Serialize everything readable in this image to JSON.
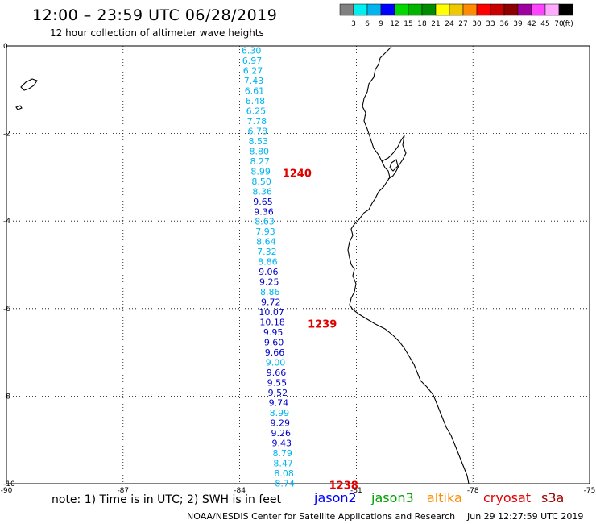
{
  "header": {
    "title": "12:00 – 23:59 UTC 06/28/2019",
    "subtitle": "12 hour collection of altimeter wave heights"
  },
  "legend": {
    "unit": "(ft)",
    "swatches": [
      {
        "label": "3",
        "color": "#808080"
      },
      {
        "label": "6",
        "color": "#00f0f0"
      },
      {
        "label": "9",
        "color": "#00b4f0"
      },
      {
        "label": "12",
        "color": "#0000ff"
      },
      {
        "label": "15",
        "color": "#00d800"
      },
      {
        "label": "18",
        "color": "#00b400"
      },
      {
        "label": "21",
        "color": "#008c00"
      },
      {
        "label": "24",
        "color": "#ffff00"
      },
      {
        "label": "27",
        "color": "#f0c800"
      },
      {
        "label": "30",
        "color": "#ff8c00"
      },
      {
        "label": "33",
        "color": "#ff0000"
      },
      {
        "label": "36",
        "color": "#c80000"
      },
      {
        "label": "39",
        "color": "#8c0000"
      },
      {
        "label": "42",
        "color": "#a000a0"
      },
      {
        "label": "45",
        "color": "#ff44ff"
      },
      {
        "label": "70",
        "color": "#ffaaff"
      },
      {
        "label": "",
        "color": "#000000"
      }
    ]
  },
  "axes": {
    "lat_ticks": [
      "0",
      "-2",
      "-4",
      "-6",
      "-8",
      "-10"
    ],
    "lon_ticks": [
      "-90",
      "-87",
      "-84",
      "-81",
      "-78",
      "-75"
    ]
  },
  "chart_data": {
    "type": "scatter",
    "x_range": [
      -90,
      -75
    ],
    "y_range": [
      -10,
      0
    ],
    "points": [
      {
        "lon": -83.7,
        "lat": -0.1,
        "value": "6.30",
        "color": "#00b4f0"
      },
      {
        "lon": -83.68,
        "lat": -0.33,
        "value": "6.97",
        "color": "#00b4f0"
      },
      {
        "lon": -83.66,
        "lat": -0.56,
        "value": "6.27",
        "color": "#00b4f0"
      },
      {
        "lon": -83.64,
        "lat": -0.79,
        "value": "7.43",
        "color": "#00b4f0"
      },
      {
        "lon": -83.62,
        "lat": -1.02,
        "value": "6.61",
        "color": "#00b4f0"
      },
      {
        "lon": -83.6,
        "lat": -1.25,
        "value": "6.48",
        "color": "#00b4f0"
      },
      {
        "lon": -83.58,
        "lat": -1.48,
        "value": "6.25",
        "color": "#00b4f0"
      },
      {
        "lon": -83.56,
        "lat": -1.71,
        "value": "7.78",
        "color": "#00b4f0"
      },
      {
        "lon": -83.54,
        "lat": -1.94,
        "value": "6.78",
        "color": "#00b4f0"
      },
      {
        "lon": -83.52,
        "lat": -2.17,
        "value": "8.53",
        "color": "#00b4f0"
      },
      {
        "lon": -83.5,
        "lat": -2.4,
        "value": "8.80",
        "color": "#00b4f0"
      },
      {
        "lon": -83.48,
        "lat": -2.63,
        "value": "8.27",
        "color": "#00b4f0"
      },
      {
        "lon": -83.46,
        "lat": -2.86,
        "value": "8.99",
        "color": "#00b4f0"
      },
      {
        "lon": -83.44,
        "lat": -3.09,
        "value": "8.50",
        "color": "#00b4f0"
      },
      {
        "lon": -83.42,
        "lat": -3.32,
        "value": "8.36",
        "color": "#00b4f0"
      },
      {
        "lon": -83.4,
        "lat": -3.55,
        "value": "9.65",
        "color": "#0000c8"
      },
      {
        "lon": -83.38,
        "lat": -3.78,
        "value": "9.36",
        "color": "#0000c8"
      },
      {
        "lon": -83.36,
        "lat": -4.01,
        "value": "8.63",
        "color": "#00b4f0"
      },
      {
        "lon": -83.34,
        "lat": -4.24,
        "value": "7.93",
        "color": "#00b4f0"
      },
      {
        "lon": -83.32,
        "lat": -4.47,
        "value": "8.64",
        "color": "#00b4f0"
      },
      {
        "lon": -83.3,
        "lat": -4.7,
        "value": "7.32",
        "color": "#00b4f0"
      },
      {
        "lon": -83.28,
        "lat": -4.93,
        "value": "8.86",
        "color": "#00b4f0"
      },
      {
        "lon": -83.26,
        "lat": -5.16,
        "value": "9.06",
        "color": "#0000c8"
      },
      {
        "lon": -83.24,
        "lat": -5.39,
        "value": "9.25",
        "color": "#0000c8"
      },
      {
        "lon": -83.22,
        "lat": -5.62,
        "value": "8.86",
        "color": "#00b4f0"
      },
      {
        "lon": -83.2,
        "lat": -5.85,
        "value": "9.72",
        "color": "#0000c8"
      },
      {
        "lon": -83.18,
        "lat": -6.08,
        "value": "10.07",
        "color": "#0000c8"
      },
      {
        "lon": -83.16,
        "lat": -6.31,
        "value": "10.18",
        "color": "#0000c8"
      },
      {
        "lon": -83.14,
        "lat": -6.54,
        "value": "9.95",
        "color": "#0000c8"
      },
      {
        "lon": -83.12,
        "lat": -6.77,
        "value": "9.60",
        "color": "#0000c8"
      },
      {
        "lon": -83.1,
        "lat": -7.0,
        "value": "9.66",
        "color": "#0000c8"
      },
      {
        "lon": -83.08,
        "lat": -7.23,
        "value": "9.00",
        "color": "#00b4f0"
      },
      {
        "lon": -83.06,
        "lat": -7.46,
        "value": "9.66",
        "color": "#0000c8"
      },
      {
        "lon": -83.04,
        "lat": -7.69,
        "value": "9.55",
        "color": "#0000c8"
      },
      {
        "lon": -83.02,
        "lat": -7.92,
        "value": "9.52",
        "color": "#0000c8"
      },
      {
        "lon": -83.0,
        "lat": -8.15,
        "value": "9.74",
        "color": "#0000c8"
      },
      {
        "lon": -82.98,
        "lat": -8.38,
        "value": "8.99",
        "color": "#00b4f0"
      },
      {
        "lon": -82.96,
        "lat": -8.61,
        "value": "9.29",
        "color": "#0000c8"
      },
      {
        "lon": -82.94,
        "lat": -8.84,
        "value": "9.26",
        "color": "#0000c8"
      },
      {
        "lon": -82.92,
        "lat": -9.07,
        "value": "9.43",
        "color": "#0000c8"
      },
      {
        "lon": -82.9,
        "lat": -9.3,
        "value": "8.79",
        "color": "#00b4f0"
      },
      {
        "lon": -82.88,
        "lat": -9.53,
        "value": "8.47",
        "color": "#00b4f0"
      },
      {
        "lon": -82.86,
        "lat": -9.76,
        "value": "8.08",
        "color": "#00b4f0"
      },
      {
        "lon": -82.84,
        "lat": -9.99,
        "value": "8.74",
        "color": "#00b4f0"
      }
    ],
    "time_labels": [
      {
        "lon": -82.9,
        "lat": -2.9,
        "text": "1240"
      },
      {
        "lon": -82.25,
        "lat": -6.34,
        "text": "1239"
      },
      {
        "lon": -81.7,
        "lat": -10.03,
        "text": "1238"
      }
    ]
  },
  "footer": {
    "note": "note: 1) Time is in UTC; 2) SWH is in feet",
    "satellites": [
      {
        "name": "jason2",
        "color": "#0000ff"
      },
      {
        "name": "jason3",
        "color": "#00a000"
      },
      {
        "name": "altika",
        "color": "#ff8c00"
      },
      {
        "name": "cryosat",
        "color": "#e00000"
      },
      {
        "name": "s3a",
        "color": "#a00000"
      }
    ],
    "credit": "NOAA/NESDIS Center for Satellite Applications and Research",
    "timestamp": "Jun 29 12:27:59 UTC 2019"
  }
}
